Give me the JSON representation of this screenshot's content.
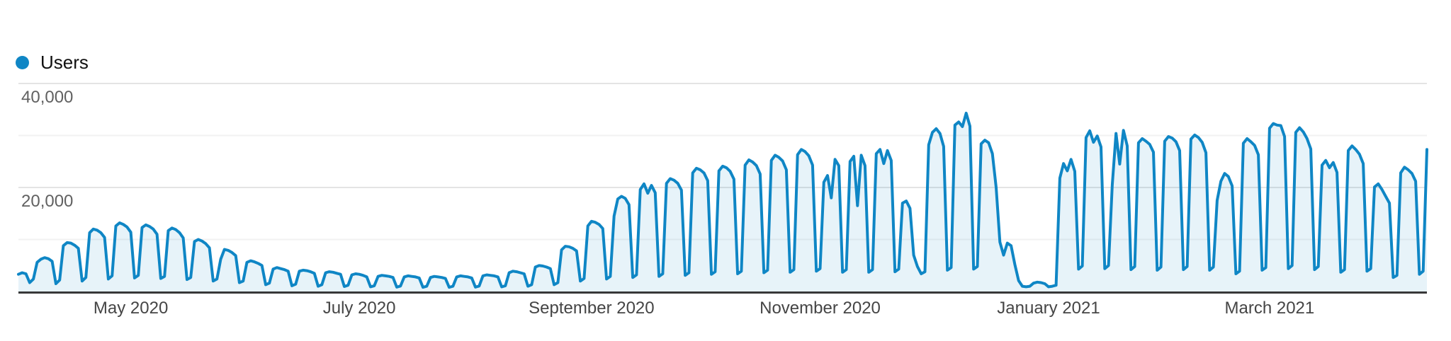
{
  "legend": {
    "label": "Users"
  },
  "colors": {
    "line": "#0f86c5",
    "fill": "rgba(15,134,197,0.10)",
    "grid_major": "#e4e4e4",
    "grid_minor": "#f2f2f2",
    "axis_line": "#383838",
    "y_label_text": "#616161",
    "x_label_text": "#454545",
    "legend_text": "#111111"
  },
  "chart_data": {
    "type": "area",
    "title": "Users",
    "series_name": "Users",
    "frequency": "daily",
    "start_date": "2020-04-01",
    "end_date": "2021-04-12",
    "ylim": [
      0,
      40000
    ],
    "grid": true,
    "legend_position": "top-left",
    "y_axis": {
      "ticks": [
        {
          "value": 10000,
          "label": ""
        },
        {
          "value": 20000,
          "label": "20,000"
        },
        {
          "value": 30000,
          "label": ""
        },
        {
          "value": 40000,
          "label": "40,000"
        }
      ]
    },
    "x_axis": {
      "labels": [
        {
          "text": "May 2020",
          "day_offset": 30
        },
        {
          "text": "July 2020",
          "day_offset": 91
        },
        {
          "text": "September 2020",
          "day_offset": 153
        },
        {
          "text": "November 2020",
          "day_offset": 214
        },
        {
          "text": "January 2021",
          "day_offset": 275
        },
        {
          "text": "March 2021",
          "day_offset": 334
        }
      ]
    },
    "daily_values": [
      3300,
      3600,
      3400,
      1700,
      2400,
      5600,
      6200,
      6500,
      6300,
      5800,
      1500,
      2200,
      8800,
      9400,
      9300,
      8900,
      8300,
      2000,
      2700,
      11300,
      12000,
      11800,
      11300,
      10400,
      2400,
      3000,
      12600,
      13200,
      12900,
      12400,
      11400,
      2600,
      3100,
      12300,
      12800,
      12500,
      12000,
      11000,
      2500,
      2900,
      11700,
      12200,
      11900,
      11300,
      10300,
      2300,
      2700,
      9600,
      10000,
      9700,
      9200,
      8400,
      2000,
      2400,
      6200,
      8100,
      7900,
      7500,
      6900,
      1700,
      2000,
      5600,
      5900,
      5700,
      5400,
      5000,
      1300,
      1600,
      4300,
      4600,
      4400,
      4200,
      3900,
      1100,
      1400,
      3900,
      4100,
      4000,
      3800,
      3500,
      1000,
      1300,
      3600,
      3800,
      3700,
      3500,
      3300,
      950,
      1200,
      3200,
      3400,
      3300,
      3100,
      2800,
      900,
      1100,
      2900,
      3100,
      3000,
      2900,
      2700,
      850,
      1050,
      2800,
      3000,
      2900,
      2800,
      2600,
      800,
      1000,
      2700,
      2900,
      2800,
      2700,
      2500,
      800,
      1000,
      2800,
      3000,
      2900,
      2800,
      2600,
      850,
      1050,
      3000,
      3200,
      3100,
      3000,
      2800,
      900,
      1100,
      3600,
      3900,
      3800,
      3600,
      3400,
      1000,
      1300,
      4700,
      5000,
      4900,
      4700,
      4400,
      1300,
      1700,
      8000,
      8700,
      8600,
      8300,
      7800,
      2000,
      2500,
      12600,
      13500,
      13300,
      12900,
      12100,
      2400,
      2900,
      14500,
      17800,
      18300,
      17900,
      16700,
      2700,
      3200,
      19600,
      20700,
      18900,
      20400,
      19000,
      2900,
      3400,
      20800,
      21700,
      21400,
      20800,
      19500,
      3100,
      3600,
      22800,
      23700,
      23400,
      22800,
      21300,
      3300,
      3800,
      23200,
      24100,
      23800,
      23100,
      21600,
      3400,
      3900,
      24300,
      25300,
      24900,
      24200,
      22600,
      3600,
      4100,
      25200,
      26200,
      25800,
      25100,
      23400,
      3700,
      4200,
      26300,
      27300,
      26900,
      26100,
      24300,
      3900,
      4400,
      21000,
      22300,
      18000,
      25400,
      24200,
      3700,
      4200,
      25000,
      26000,
      16500,
      26200,
      24200,
      3700,
      4200,
      26500,
      27300,
      24600,
      27100,
      25200,
      3800,
      4300,
      17000,
      17400,
      16000,
      7000,
      4800,
      3400,
      3800,
      28200,
      30600,
      31300,
      30400,
      27900,
      4100,
      4600,
      32000,
      32600,
      31700,
      34300,
      31800,
      4300,
      4800,
      28400,
      29100,
      28600,
      26500,
      20000,
      9500,
      7000,
      9300,
      8800,
      5200,
      2100,
      1000,
      900,
      1000,
      1600,
      1800,
      1700,
      1500,
      900,
      1000,
      1200,
      21800,
      24600,
      23200,
      25400,
      23100,
      4300,
      4900,
      29600,
      30900,
      28700,
      29900,
      27800,
      4400,
      5000,
      20500,
      30400,
      24500,
      31000,
      28000,
      4200,
      4800,
      28600,
      29400,
      28900,
      28300,
      26800,
      4100,
      4700,
      28900,
      29800,
      29500,
      28800,
      27100,
      4200,
      4800,
      29300,
      30100,
      29600,
      28700,
      26700,
      4100,
      4700,
      17500,
      21200,
      22700,
      22100,
      20300,
      3400,
      3900,
      28500,
      29400,
      28800,
      28100,
      26300,
      4100,
      4600,
      31400,
      32300,
      32000,
      31900,
      29800,
      4400,
      5000,
      30600,
      31500,
      30700,
      29400,
      27400,
      4200,
      4800,
      24300,
      25200,
      23800,
      24800,
      22900,
      3700,
      4200,
      27100,
      28000,
      27300,
      26400,
      24600,
      3900,
      4400,
      20100,
      20700,
      19600,
      18300,
      17000,
      2700,
      3100,
      22800,
      23900,
      23400,
      22700,
      21200,
      3300,
      3900,
      27300
    ]
  }
}
